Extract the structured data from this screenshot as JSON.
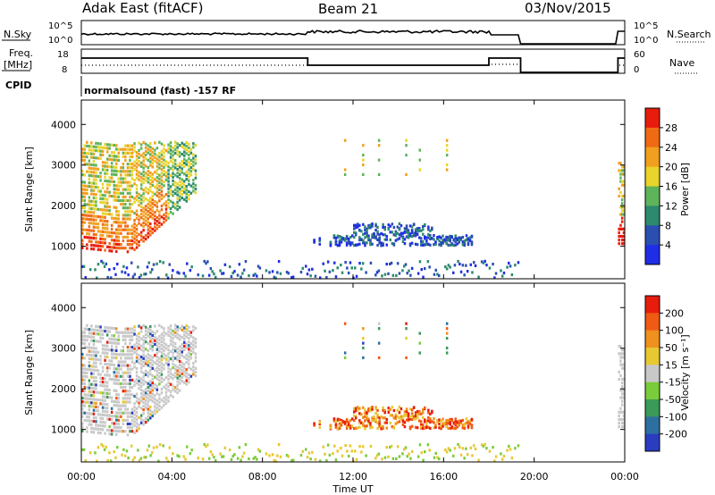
{
  "header": {
    "station": "Adak East (fitACF)",
    "beam": "Beam 21",
    "date": "03/Nov/2015"
  },
  "top_panels": {
    "nsky_label": "N.Sky",
    "nsearch_label": "N.Search",
    "freq_label_1": "Freq.",
    "freq_label_2": "[MHz]",
    "nave_label": "Nave",
    "cpid_label": "CPID",
    "cpid_value": "normalsound (fast) -157 RF",
    "left_ticks_top": [
      "10^5",
      "10^0"
    ],
    "right_ticks_top": [
      "10^5",
      "10^0"
    ],
    "left_ticks_freq": [
      "18",
      "8"
    ],
    "right_ticks_nave": [
      "60",
      "0"
    ]
  },
  "chart_data": [
    {
      "type": "heatmap",
      "name": "power",
      "ylabel": "Slant Range [km]",
      "ylim": [
        200,
        4600
      ],
      "yticks": [
        "1000",
        "2000",
        "3000",
        "4000"
      ],
      "colorbar": {
        "label": "Power [dB]",
        "ticks": [
          "4",
          "8",
          "12",
          "16",
          "20",
          "24",
          "28"
        ],
        "colors": [
          "#1f2ee6",
          "#2a4fb0",
          "#2d8a6e",
          "#5fb35a",
          "#e8d42a",
          "#f0a01e",
          "#f06a14",
          "#e81c0c"
        ]
      }
    },
    {
      "type": "heatmap",
      "name": "velocity",
      "ylabel": "Slant Range [km]",
      "ylim": [
        200,
        4600
      ],
      "yticks": [
        "1000",
        "2000",
        "3000",
        "4000"
      ],
      "colorbar": {
        "label": "Velocity [m s⁻¹]",
        "ticks": [
          "200",
          "100",
          "50",
          "15",
          "-15",
          "-50",
          "-100",
          "-200"
        ],
        "colors": [
          "#2a3cc0",
          "#2d6fa0",
          "#3a9a5a",
          "#7acc3a",
          "#c8c8c8",
          "#e8c832",
          "#f0901e",
          "#f05a14",
          "#e81c0c"
        ]
      }
    }
  ],
  "x_axis": {
    "label": "Time UT",
    "ticks": [
      "00:00",
      "04:00",
      "08:00",
      "12:00",
      "16:00",
      "20:00",
      "00:00"
    ],
    "range_hours": [
      0,
      24
    ]
  }
}
